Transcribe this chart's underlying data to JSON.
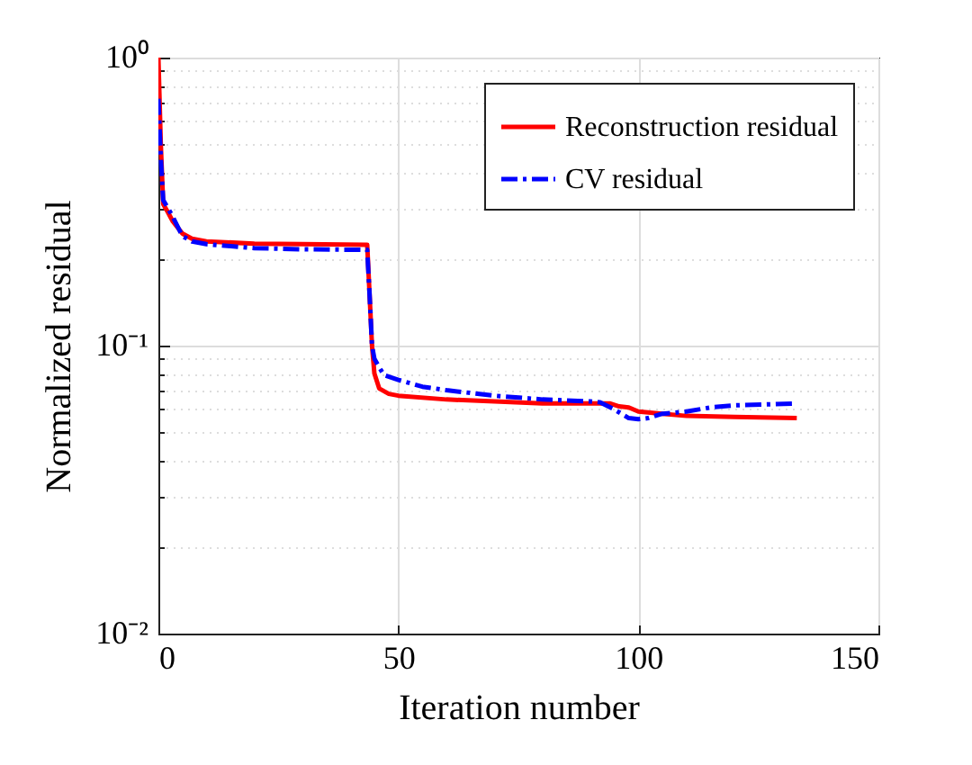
{
  "chart_data": {
    "type": "line",
    "xlabel": "Iteration number",
    "ylabel": "Normalized residual",
    "series": [
      {
        "name": "Reconstruction residual",
        "color": "#ff0000",
        "line_style": "solid",
        "x": [
          0,
          0.5,
          1,
          2,
          3,
          5,
          7,
          10,
          20,
          30,
          43.5,
          44.5,
          45,
          46,
          48,
          50,
          60,
          70,
          80,
          90,
          94,
          96,
          98,
          100,
          105,
          110,
          120,
          133
        ],
        "values": [
          1.0,
          0.5,
          0.31,
          0.29,
          0.27,
          0.245,
          0.235,
          0.23,
          0.226,
          0.225,
          0.224,
          0.1,
          0.08,
          0.071,
          0.068,
          0.067,
          0.065,
          0.064,
          0.063,
          0.063,
          0.063,
          0.0615,
          0.061,
          0.059,
          0.058,
          0.057,
          0.0565,
          0.056
        ]
      },
      {
        "name": "CV residual",
        "color": "#0000ff",
        "line_style": "dashdot",
        "x": [
          0,
          0.5,
          1,
          2,
          3,
          5,
          7,
          10,
          20,
          30,
          43.5,
          44,
          44.5,
          45,
          46,
          47,
          50,
          55,
          60,
          70,
          80,
          90,
          92,
          95,
          98,
          100,
          102,
          105,
          110,
          115,
          120,
          133
        ],
        "values": [
          0.72,
          0.45,
          0.32,
          0.3,
          0.28,
          0.24,
          0.23,
          0.225,
          0.218,
          0.216,
          0.215,
          0.15,
          0.1,
          0.09,
          0.084,
          0.079,
          0.076,
          0.072,
          0.07,
          0.067,
          0.065,
          0.064,
          0.0635,
          0.06,
          0.056,
          0.0555,
          0.056,
          0.058,
          0.059,
          0.061,
          0.062,
          0.063
        ]
      }
    ],
    "log": "y",
    "xlim": [
      0,
      150
    ],
    "xticks": [
      0,
      50,
      100,
      150
    ],
    "ylim": [
      0.01,
      1
    ],
    "yticks": [
      {
        "value": 0.01,
        "label": "10⁻²"
      },
      {
        "value": 0.02,
        "label": null
      },
      {
        "value": 0.03,
        "label": null
      },
      {
        "value": 0.04,
        "label": null
      },
      {
        "value": 0.05,
        "label": null
      },
      {
        "value": 0.06,
        "label": null
      },
      {
        "value": 0.07,
        "label": null
      },
      {
        "value": 0.08,
        "label": null
      },
      {
        "value": 0.09,
        "label": null
      },
      {
        "value": 0.1,
        "label": "10⁻¹"
      },
      {
        "value": 0.2,
        "label": null
      },
      {
        "value": 0.3,
        "label": null
      },
      {
        "value": 0.4,
        "label": null
      },
      {
        "value": 0.5,
        "label": null
      },
      {
        "value": 0.6,
        "label": null
      },
      {
        "value": 0.7,
        "label": null
      },
      {
        "value": 0.8,
        "label": null
      },
      {
        "value": 0.9,
        "label": null
      },
      {
        "value": 1,
        "label": "10⁰"
      }
    ],
    "grid": true,
    "legend": "top right"
  }
}
